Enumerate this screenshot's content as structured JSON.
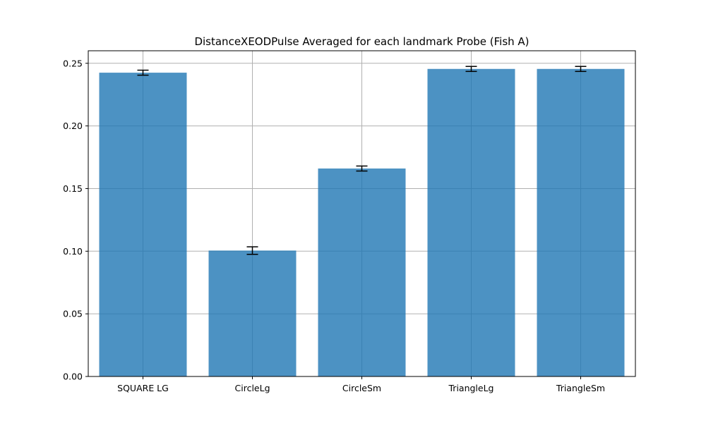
{
  "chart_data": {
    "type": "bar",
    "title": "DistanceXEODPulse Averaged for each landmark Probe (Fish A)",
    "xlabel": "",
    "ylabel": "",
    "categories": [
      "SQUARE LG",
      "CircleLg",
      "CircleSm",
      "TriangleLg",
      "TriangleSm"
    ],
    "values": [
      0.2425,
      0.1005,
      0.166,
      0.2455,
      0.2455
    ],
    "errors": [
      0.002,
      0.003,
      0.002,
      0.002,
      0.002
    ],
    "ylim": [
      0,
      0.26
    ],
    "yticks": [
      0.0,
      0.05,
      0.1,
      0.15,
      0.2,
      0.25
    ],
    "ytick_labels": [
      "0.00",
      "0.05",
      "0.10",
      "0.15",
      "0.20",
      "0.25"
    ],
    "grid": true,
    "bar_color": "#1f77b4",
    "bar_alpha": 0.8,
    "grid_color": "#b0b0b0"
  }
}
